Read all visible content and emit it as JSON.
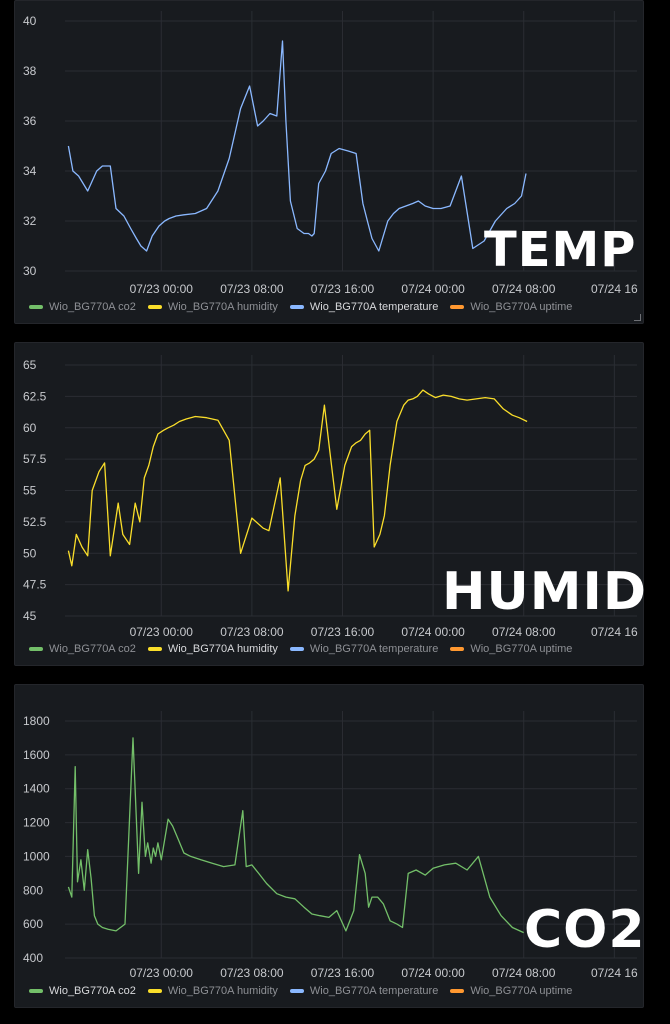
{
  "legend": [
    {
      "name": "Wio_BG770A co2",
      "color": "#73bf69"
    },
    {
      "name": "Wio_BG770A humidity",
      "color": "#fade2a"
    },
    {
      "name": "Wio_BG770A temperature",
      "color": "#8ab8ff"
    },
    {
      "name": "Wio_BG770A uptime",
      "color": "#ff9830"
    }
  ],
  "overlays": {
    "temp": "TEMP",
    "humid": "HUMID",
    "co2": "CO2"
  },
  "chart_data": [
    {
      "type": "line",
      "x_ticks": [
        "07/23 00:00",
        "07/23 08:00",
        "07/23 16:00",
        "07/24 00:00",
        "07/24 08:00",
        "07/24 16"
      ],
      "x_tick_hours": [
        24,
        32,
        40,
        48,
        56,
        64
      ],
      "y_ticks": [
        "30",
        "32",
        "34",
        "36",
        "38",
        "40"
      ],
      "ylim": [
        30,
        40
      ],
      "xlim": [
        15.5,
        66
      ],
      "active_series": 2,
      "series": [
        {
          "name": "Wio_BG770A temperature",
          "color": "#8ab8ff",
          "x": [
            15.8,
            16.2,
            16.7,
            17.5,
            18.3,
            18.8,
            19.5,
            20,
            20.7,
            21.3,
            21.8,
            22.2,
            22.7,
            23.2,
            23.8,
            24.3,
            24.7,
            25.3,
            26,
            27,
            28,
            29,
            30,
            31,
            31.8,
            32.5,
            33,
            33.6,
            34.2,
            34.7,
            35,
            35.4,
            36,
            36.6,
            37,
            37.3,
            37.5,
            37.9,
            38.5,
            39,
            39.7,
            40.5,
            41.2,
            41.8,
            42.2,
            42.6,
            43.2,
            44,
            44.5,
            45,
            45.6,
            46.2,
            46.7,
            47.3,
            48,
            48.7,
            49.5,
            50.5,
            51.5,
            52.5,
            53.5,
            54.5,
            55.2,
            55.8,
            56.2
          ],
          "values": [
            35,
            34,
            33.8,
            33.2,
            34,
            34.2,
            34.2,
            32.5,
            32.2,
            31.7,
            31.3,
            31,
            30.8,
            31.4,
            31.8,
            32,
            32.1,
            32.2,
            32.25,
            32.3,
            32.5,
            33.2,
            34.5,
            36.5,
            37.4,
            35.8,
            36,
            36.3,
            36.2,
            39.2,
            36,
            32.8,
            31.7,
            31.5,
            31.5,
            31.4,
            31.5,
            33.5,
            34,
            34.7,
            34.9,
            34.8,
            34.7,
            32.7,
            32,
            31.3,
            30.8,
            32,
            32.3,
            32.5,
            32.6,
            32.7,
            32.8,
            32.6,
            32.5,
            32.5,
            32.6,
            33.8,
            30.9,
            31.2,
            32.0,
            32.5,
            32.7,
            33,
            33.9
          ]
        }
      ]
    },
    {
      "type": "line",
      "x_ticks": [
        "07/23 00:00",
        "07/23 08:00",
        "07/23 16:00",
        "07/24 00:00",
        "07/24 08:00",
        "07/24 16"
      ],
      "x_tick_hours": [
        24,
        32,
        40,
        48,
        56,
        64
      ],
      "y_ticks": [
        "45",
        "47.5",
        "50",
        "52.5",
        "55",
        "57.5",
        "60",
        "62.5",
        "65"
      ],
      "ylim": [
        45,
        65
      ],
      "xlim": [
        15.5,
        66
      ],
      "active_series": 1,
      "series": [
        {
          "name": "Wio_BG770A humidity",
          "color": "#fade2a",
          "x": [
            15.8,
            16.1,
            16.5,
            17,
            17.5,
            17.9,
            18.5,
            19,
            19.5,
            20.2,
            20.6,
            21.2,
            21.7,
            22.1,
            22.5,
            22.9,
            23.3,
            23.7,
            24.2,
            24.6,
            25.1,
            25.6,
            26.2,
            27,
            28,
            29,
            30,
            31,
            32,
            33,
            33.5,
            34.5,
            35.2,
            35.8,
            36.3,
            36.7,
            37.1,
            37.5,
            37.9,
            38.4,
            38.9,
            39.5,
            40.2,
            40.8,
            41.2,
            41.6,
            42,
            42.4,
            42.8,
            43.3,
            43.7,
            44.2,
            44.8,
            45.4,
            45.8,
            46.2,
            46.6,
            47.1,
            47.6,
            48.2,
            48.9,
            49.6,
            50.3,
            51,
            51.8,
            52.6,
            53.4,
            54.2,
            55,
            55.6,
            56.3
          ],
          "values": [
            50.2,
            49,
            51.5,
            50.5,
            49.8,
            55,
            56.5,
            57.2,
            49.8,
            54,
            51.5,
            50.7,
            54,
            52.5,
            56,
            57,
            58.5,
            59.5,
            59.8,
            60,
            60.2,
            60.5,
            60.7,
            60.9,
            60.8,
            60.6,
            59,
            50,
            52.8,
            52,
            51.8,
            56,
            47,
            53,
            55.8,
            57,
            57.2,
            57.5,
            58.2,
            61.8,
            58,
            53.5,
            57,
            58.5,
            58.8,
            59,
            59.5,
            59.8,
            50.5,
            51.5,
            53,
            57,
            60.5,
            61.8,
            62.2,
            62.3,
            62.5,
            63,
            62.7,
            62.4,
            62.6,
            62.5,
            62.3,
            62.2,
            62.3,
            62.4,
            62.3,
            61.5,
            61.0,
            60.8,
            60.5
          ]
        }
      ]
    },
    {
      "type": "line",
      "x_ticks": [
        "07/23 00:00",
        "07/23 08:00",
        "07/23 16:00",
        "07/24 00:00",
        "07/24 08:00",
        "07/24 16"
      ],
      "x_tick_hours": [
        24,
        32,
        40,
        48,
        56,
        64
      ],
      "y_ticks": [
        "400",
        "600",
        "800",
        "1000",
        "1200",
        "1400",
        "1600",
        "1800"
      ],
      "ylim": [
        400,
        1800
      ],
      "xlim": [
        15.5,
        66
      ],
      "active_series": 0,
      "series": [
        {
          "name": "Wio_BG770A co2",
          "color": "#73bf69",
          "x": [
            15.8,
            16.1,
            16.4,
            16.6,
            16.9,
            17.2,
            17.5,
            17.8,
            18.1,
            18.4,
            18.8,
            19.3,
            20,
            20.8,
            21.5,
            22,
            22.3,
            22.6,
            22.8,
            23.1,
            23.3,
            23.5,
            23.7,
            24,
            24.3,
            24.6,
            25,
            25.5,
            26,
            26.6,
            27.5,
            28.5,
            29.5,
            30.5,
            31.2,
            31.5,
            32,
            32.6,
            33.3,
            34.2,
            35,
            35.8,
            36.6,
            37.3,
            38,
            38.8,
            39.5,
            40.3,
            41,
            41.5,
            42,
            42.3,
            42.6,
            43.1,
            43.6,
            44.2,
            44.8,
            45.3,
            45.8,
            46.5,
            47.3,
            48,
            49,
            50,
            51,
            52,
            53,
            54,
            55,
            56
          ],
          "values": [
            820,
            760,
            1530,
            850,
            980,
            800,
            1040,
            870,
            650,
            600,
            580,
            570,
            560,
            600,
            1700,
            900,
            1320,
            1000,
            1080,
            960,
            1050,
            1000,
            1080,
            980,
            1100,
            1220,
            1180,
            1100,
            1020,
            1000,
            980,
            960,
            940,
            950,
            1270,
            940,
            950,
            900,
            840,
            780,
            760,
            750,
            700,
            660,
            650,
            640,
            680,
            560,
            680,
            1010,
            900,
            700,
            760,
            760,
            720,
            620,
            600,
            580,
            900,
            920,
            890,
            930,
            950,
            960,
            920,
            1000,
            760,
            650,
            580,
            550
          ]
        }
      ]
    }
  ]
}
